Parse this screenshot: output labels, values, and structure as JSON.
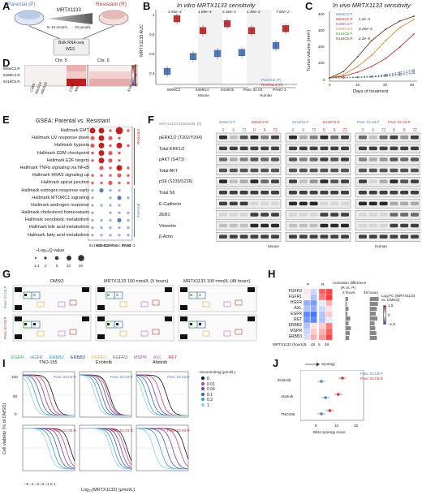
{
  "panels": {
    "A": {
      "letter": "A",
      "parental_label": "Parental (P)",
      "resistant_label": "Resistant (R)",
      "drug": "MRTX1133",
      "dose_left": "5–10 nmol/L",
      "dose_right": "10 μmol/L",
      "assays": [
        "Bulk RNA-seq",
        "WES"
      ]
    },
    "B": {
      "letter": "B",
      "title": "In vitro MRTX1133 sensitivity",
      "ylabel": "MRTX1133 AUC",
      "legend": [
        "Parental (P)",
        "Resistant (R)"
      ],
      "groups": [
        {
          "name": "6694C2",
          "pvalue": "3.95e–3"
        },
        {
          "name": "6499C4",
          "pvalue": "1.89e–4"
        },
        {
          "name": "6419C5",
          "pvalue": "5.36e–3"
        },
        {
          "name": "Panc 02.03",
          "pvalue": "1.39e–3"
        },
        {
          "name": "PANC-1",
          "pvalue": "7.60e–2"
        }
      ],
      "species": [
        "Mouse",
        "Human"
      ],
      "yticks": [
        "0.4",
        "0.6",
        "0.8",
        "1"
      ]
    },
    "C": {
      "letter": "C",
      "title": "In vivo MRTX1133 sensitivity",
      "ylabel": "Tumor volume (mm³)",
      "xlabel": "Days of treatment",
      "yticks": [
        "0",
        "100",
        "200",
        "300",
        "400"
      ],
      "xticks": [
        "0",
        "10",
        "20",
        "30"
      ],
      "legend": [
        {
          "name": "6694C2.P",
          "p": ""
        },
        {
          "name": "6694C2.R",
          "p": "1.2e–3"
        },
        {
          "name": "6499C4.P",
          "p": ""
        },
        {
          "name": "6499C4.R",
          "p": "3.25e–4"
        },
        {
          "name": "6419C5.P",
          "p": ""
        },
        {
          "name": "6419C5.R",
          "p": "2.2e–5"
        }
      ]
    },
    "D": {
      "letter": "D",
      "chr_labels": [
        "Chr. 5",
        "Chr. 6"
      ],
      "rows": [
        "6694C2.R",
        "6499C4.R",
        "6419C5.R"
      ],
      "genes": [
        "Cdk6",
        "Abcb1a",
        "Abcb1b",
        "Cdk6",
        "Met",
        "Kras"
      ],
      "legend_title": "Log₂ copy ratio (relative to parental)",
      "legend_ticks": [
        "2",
        "0",
        "–2"
      ]
    },
    "E": {
      "letter": "E",
      "title": "GSEA: Parental vs. Resistant",
      "terms": [
        "Hallmark EMT",
        "Hallmark UV response down",
        "Hallmark hypoxia",
        "Hallmark G2M checkpoint",
        "Hallmark E2F targets",
        "Hallmark TNFα signaling via NFκB",
        "Hallmark KRAS signaling up",
        "Hallmark apical junction",
        "Hallmark estrogen response early",
        "Hallmark MTORC1 signaling",
        "Hallmark androgen response",
        "Hallmark cholesterol homeostasis",
        "Hallmark xenobiotic metabolism",
        "Hallmark bile acid metabolism",
        "Hallmark fatty acid metabolism"
      ],
      "columns": [
        "6419C5",
        "6694C2",
        "6499C4",
        "Panc 02.03",
        "PANC-1"
      ],
      "side_resistant": "Resistant",
      "side_parental": "Parental",
      "size_legend_title": "–Log₁₀Q value",
      "size_legend": [
        "1.3",
        "2",
        "5",
        "10",
        "20"
      ]
    },
    "F": {
      "letter": "F",
      "header_drug": "MRTX1133 100nmol/L (h)",
      "groups": [
        "6694C2.P",
        "6694C2.R",
        "6419C5.P",
        "6419C5.R",
        "Panc 02.03.P",
        "Panc 02.03.R"
      ],
      "times": [
        "0",
        "6",
        "72"
      ],
      "blots": [
        "pERK1/2 (T202/Y204)",
        "Total ERK1/2",
        "pAKT (S473)",
        "Total AKT",
        "pS6 (S235/S236)",
        "Total S6",
        "E-Cadherin",
        "ZEB1",
        "Vimentin",
        "β-Actin"
      ],
      "species": [
        "Mouse",
        "Human"
      ]
    },
    "G": {
      "letter": "G",
      "columns": [
        "DMSO",
        "MRTX1133 100 nmol/L (5 hours)",
        "MRTX1133 100 nmol/L (48 hours)"
      ],
      "rows": [
        "Panc 02.03.P",
        "Panc 02.03.R"
      ],
      "legend": [
        "EGFR",
        "HGFR",
        "ERBB2",
        "ERBB3",
        "FGFR1",
        "FGFR3",
        "MSPR",
        "AXL",
        "RET"
      ]
    },
    "H": {
      "letter": "H",
      "header": "Activation difference",
      "header2": "(R vs. P)",
      "rows": [
        "FGFR3",
        "FGFR1",
        "HGFR",
        "AXL",
        "EGFR",
        "RET",
        "ERBB2",
        "MSPR",
        "ERBB3"
      ],
      "col_groups": [
        "P",
        "R"
      ],
      "hours_label": "MRTX1133 (hours):",
      "hours": [
        "5",
        "48",
        "5",
        "48"
      ],
      "bar_titles": [
        "5 hours",
        "48 hours"
      ],
      "legend_title": "Log₂FC (MRTX1133 vs. DMSO)",
      "legend_ticks": [
        "1.5",
        "0",
        "–1.5"
      ],
      "bar_ticks": [
        "–1.5",
        "0",
        "1.5"
      ]
    },
    "I": {
      "letter": "I",
      "drugs": [
        "TNO-155",
        "Erlotinib",
        "Afatinib"
      ],
      "rows": [
        "Panc 02.03.P",
        "Panc 02.03.R"
      ],
      "ylabel": "Cell viability (% of DMSO)",
      "xlabel": "Log₁₀(MRTX1133) (μmol/L)",
      "xticks": [
        "–5",
        "–4",
        "–3",
        "–2",
        "–1",
        "0",
        "1"
      ],
      "yticks": [
        "0",
        "50",
        "100"
      ],
      "legend_title": "Second drug (μmol/L)",
      "legend": [
        "0",
        "0.01",
        "0.04",
        "0.1",
        "0.3",
        "1"
      ]
    },
    "J": {
      "letter": "J",
      "arrow_label": "Synergy",
      "drugs": [
        "Erlotinib",
        "Afatinib",
        "TNO155"
      ],
      "xlabel": "Bliss synergy score",
      "xticks": [
        "5",
        "10",
        "15"
      ],
      "legend": [
        "Panc 02.03.P",
        "Panc 02.03.R"
      ]
    }
  },
  "colors": {
    "parental": "#4f7fc2",
    "resistant": "#d03030",
    "green": "#3aa04a",
    "orange": "#e08a30",
    "purple": "#8a5ab0"
  },
  "chart_data": [
    {
      "type": "box",
      "panel": "B",
      "categories": [
        "6694C2",
        "6499C4",
        "6419C5",
        "Panc 02.03",
        "PANC-1"
      ],
      "series": [
        {
          "name": "Parental (P)",
          "values": [
            0.43,
            0.58,
            0.61,
            0.62,
            0.69
          ]
        },
        {
          "name": "Resistant (R)",
          "values": [
            0.96,
            0.84,
            0.91,
            0.84,
            0.86
          ]
        }
      ],
      "ylim": [
        0.3,
        1.05
      ]
    },
    {
      "type": "line",
      "panel": "C",
      "x": [
        0,
        5,
        10,
        15,
        20,
        25,
        30
      ],
      "series": [
        {
          "name": "6694C2.P",
          "values": [
            20,
            22,
            25,
            30,
            40,
            55,
            70
          ]
        },
        {
          "name": "6694C2.R",
          "values": [
            20,
            30,
            55,
            90,
            140,
            210,
            290
          ]
        },
        {
          "name": "6499C4.P",
          "values": [
            20,
            22,
            24,
            28,
            35,
            45,
            60
          ]
        },
        {
          "name": "6499C4.R",
          "values": [
            20,
            40,
            90,
            160,
            250,
            330,
            380
          ]
        },
        {
          "name": "6419C5.P",
          "values": [
            20,
            20,
            22,
            25,
            30,
            38,
            50
          ]
        },
        {
          "name": "6419C5.R",
          "values": [
            20,
            60,
            150,
            250,
            320,
            370,
            400
          ]
        }
      ],
      "ylim": [
        0,
        420
      ]
    },
    {
      "type": "scatter",
      "panel": "J",
      "categories": [
        "Erlotinib",
        "Afatinib",
        "TNO155"
      ],
      "series": [
        {
          "name": "Panc 02.03.P",
          "values": [
            8,
            9,
            8
          ]
        },
        {
          "name": "Panc 02.03.R",
          "values": [
            13,
            12,
            10
          ]
        }
      ],
      "xlim": [
        3,
        18
      ]
    }
  ]
}
